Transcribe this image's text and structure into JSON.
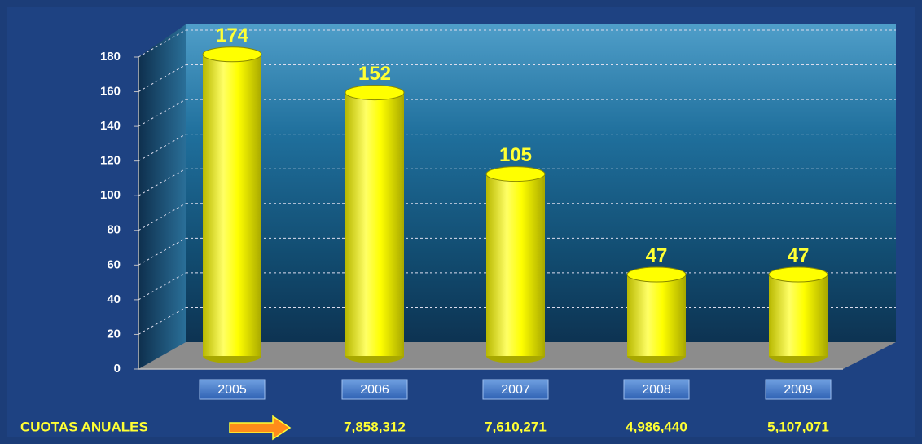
{
  "chart_data": {
    "type": "bar",
    "categories": [
      "2005",
      "2006",
      "2007",
      "2008",
      "2009"
    ],
    "values": [
      174,
      152,
      105,
      47,
      47
    ],
    "color": "#ffff00",
    "ylim": [
      0,
      180
    ],
    "yticks": [
      0,
      20,
      40,
      60,
      80,
      100,
      120,
      140,
      160,
      180
    ],
    "grid": true,
    "quotas": {
      "label": "CUOTAS ANUALES",
      "values": [
        null,
        7858312,
        7610271,
        4986440,
        5107071
      ],
      "value_labels": [
        null,
        "7,858,312",
        "7,610,271",
        "4,986,440",
        "5,107,071"
      ]
    }
  }
}
